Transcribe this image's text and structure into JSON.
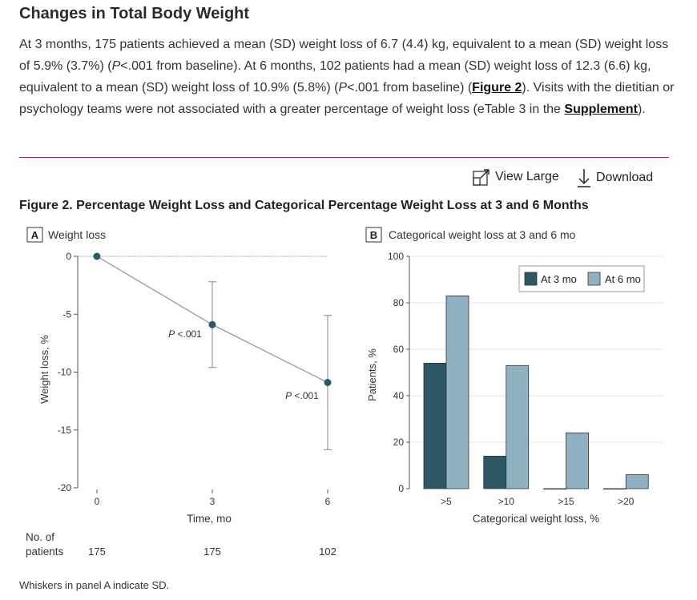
{
  "section_heading": "Changes in Total Body Weight",
  "paragraph": {
    "t1": "At 3 months, 175 patients achieved a mean (SD) weight loss of 6.7 (4.4) kg, equivalent to a mean (SD) weight loss of 5.9% (3.7%) (",
    "p1": "P",
    "t2": "<.001 from baseline). At 6 months, 102 patients had a mean (SD) weight loss of 12.3 (6.6) kg, equivalent to a mean (SD) weight loss of 10.9% (5.8%) (",
    "p2": "P",
    "t3": "<.001 from baseline) (",
    "figure_link": "Figure 2",
    "t4": "). Visits with the dieti­tian or psychology teams were not associated with a greater percentage of weight loss (eTable 3 in the ",
    "supplement_link": "Supplement",
    "t5": ")."
  },
  "toolbar": {
    "view_large": "View Large",
    "download": "Download"
  },
  "figure_title": "Figure 2.  Percentage Weight Loss and Categorical Percentage Weight Loss at 3 and 6 Months",
  "colors": {
    "rule": "#a0287a",
    "series_3mo": "#2f5866",
    "series_6mo": "#8fb1c2",
    "line": "#999999",
    "point": "#2f5866"
  },
  "panel_a": {
    "letter": "A",
    "title": "Weight loss",
    "ylabel": "Weight loss, %",
    "xlabel": "Time, mo",
    "no_of_label_1": "No. of",
    "no_of_label_2": "patients",
    "annotations": [
      "P <.001",
      "P <.001"
    ]
  },
  "panel_b": {
    "letter": "B",
    "title": "Categorical weight loss at 3 and 6 mo",
    "ylabel": "Patients, %",
    "xlabel": "Categorical weight loss, %",
    "legend_3mo": "At 3 mo",
    "legend_6mo": "At 6 mo"
  },
  "caption": "Whiskers in panel A indicate SD.",
  "chart_data": [
    {
      "type": "line",
      "title": "Weight loss",
      "xlabel": "Time, mo",
      "ylabel": "Weight loss, %",
      "x": [
        0,
        3,
        6
      ],
      "x_tick_labels": [
        "0",
        "3",
        "6"
      ],
      "y": [
        0,
        -5.9,
        -10.9
      ],
      "sd": [
        0,
        3.7,
        5.8
      ],
      "ylim": [
        -20,
        0
      ],
      "y_ticks": [
        0,
        -5,
        -10,
        -15,
        -20
      ],
      "n_patients": [
        "175",
        "175",
        "102"
      ],
      "grid": false
    },
    {
      "type": "bar",
      "title": "Categorical weight loss at 3 and 6 mo",
      "xlabel": "Categorical weight loss, %",
      "ylabel": "Patients, %",
      "categories": [
        ">5",
        ">10",
        ">15",
        ">20"
      ],
      "series": [
        {
          "name": "At 3 mo",
          "values": [
            54,
            14,
            0,
            0
          ]
        },
        {
          "name": "At 6 mo",
          "values": [
            83,
            53,
            24,
            6
          ]
        }
      ],
      "ylim": [
        0,
        100
      ],
      "y_ticks": [
        0,
        20,
        40,
        60,
        80,
        100
      ],
      "legend": "top-right",
      "grid": true
    }
  ]
}
